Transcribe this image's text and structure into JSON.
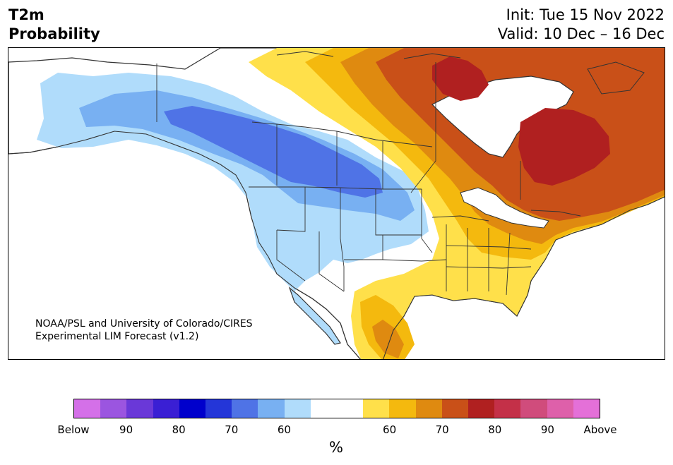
{
  "header": {
    "title_line1": "T2m",
    "title_line2": "Probability",
    "init": "Init: Tue 15 Nov 2022",
    "valid": "Valid: 10 Dec – 16 Dec"
  },
  "map": {
    "region": "North America",
    "credit_line1": "NOAA/PSL and University of Colorado/CIRES",
    "credit_line2": "Experimental LIM Forecast (v1.2)"
  },
  "colorbar": {
    "colors": [
      "#d470e8",
      "#9b55e0",
      "#6a38d8",
      "#3a1fd4",
      "#0000cc",
      "#2436d8",
      "#4f73e6",
      "#78b0f2",
      "#b0dcfb",
      "#ffffff",
      "#ffffff",
      "#ffe04a",
      "#f4b90e",
      "#df8a10",
      "#c95018",
      "#b02020",
      "#c43048",
      "#d04c7c",
      "#de60aa",
      "#e470d8"
    ],
    "tick_labels": [
      "Below",
      "90",
      "80",
      "70",
      "60",
      "60",
      "70",
      "80",
      "90",
      "Above"
    ],
    "unit": "%"
  }
}
